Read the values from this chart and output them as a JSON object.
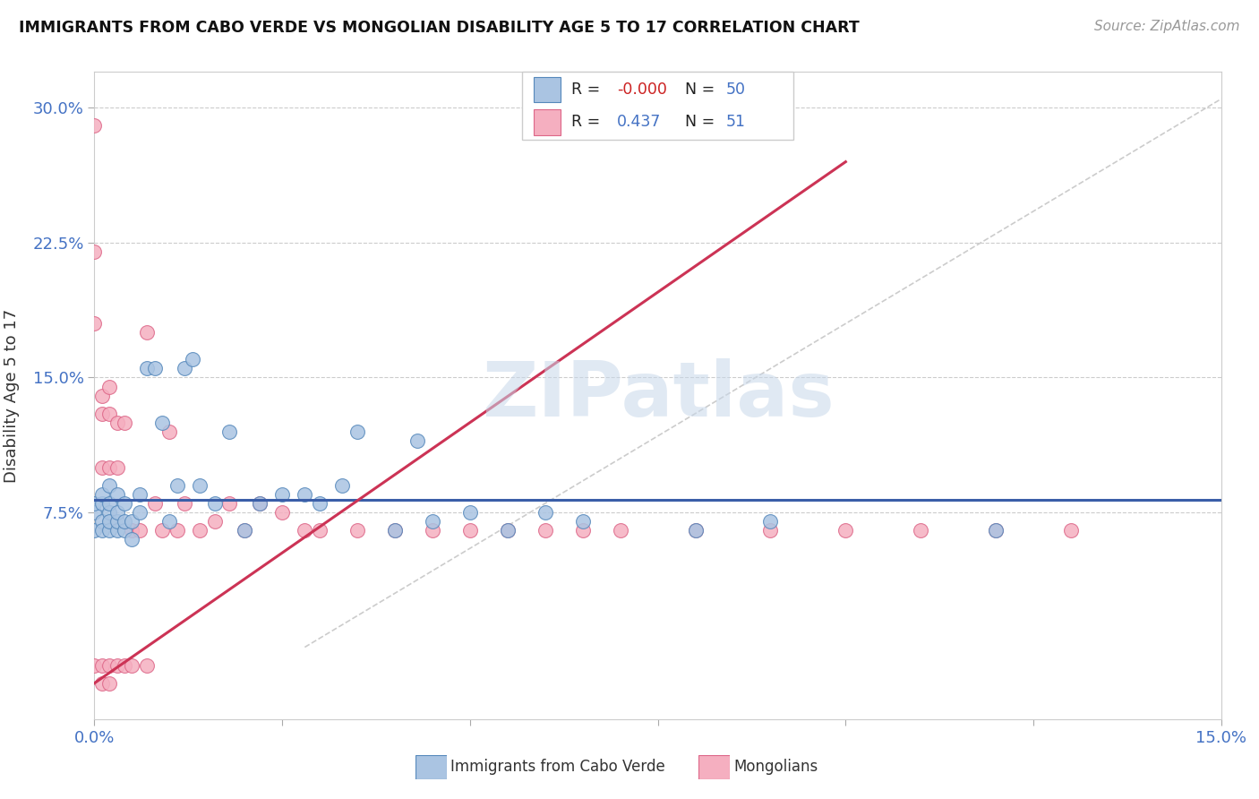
{
  "title": "IMMIGRANTS FROM CABO VERDE VS MONGOLIAN DISABILITY AGE 5 TO 17 CORRELATION CHART",
  "source_text": "Source: ZipAtlas.com",
  "ylabel": "Disability Age 5 to 17",
  "xlim": [
    0.0,
    0.15
  ],
  "ylim": [
    -0.04,
    0.32
  ],
  "xticks": [
    0.0,
    0.025,
    0.05,
    0.075,
    0.1,
    0.125,
    0.15
  ],
  "xticklabels": [
    "0.0%",
    "",
    "",
    "",
    "",
    "",
    "15.0%"
  ],
  "yticks": [
    0.075,
    0.15,
    0.225,
    0.3
  ],
  "yticklabels": [
    "7.5%",
    "15.0%",
    "22.5%",
    "30.0%"
  ],
  "legend_r_blue": "-0.000",
  "legend_n_blue": "50",
  "legend_r_pink": "0.437",
  "legend_n_pink": "51",
  "blue_color": "#aac4e2",
  "pink_color": "#f5afc0",
  "blue_edge": "#5588bb",
  "pink_edge": "#dd6688",
  "line_blue": "#3a5ea8",
  "line_pink": "#cc3355",
  "line_grey": "#cccccc",
  "watermark_color": "#c8d8ea",
  "cabo_verde_x": [
    0.0,
    0.0,
    0.0,
    0.001,
    0.001,
    0.001,
    0.001,
    0.002,
    0.002,
    0.002,
    0.002,
    0.002,
    0.003,
    0.003,
    0.003,
    0.003,
    0.004,
    0.004,
    0.004,
    0.005,
    0.005,
    0.006,
    0.006,
    0.007,
    0.008,
    0.009,
    0.01,
    0.011,
    0.012,
    0.013,
    0.014,
    0.016,
    0.018,
    0.02,
    0.022,
    0.025,
    0.028,
    0.03,
    0.033,
    0.035,
    0.04,
    0.043,
    0.045,
    0.05,
    0.055,
    0.06,
    0.065,
    0.08,
    0.09,
    0.12
  ],
  "cabo_verde_y": [
    0.075,
    0.08,
    0.065,
    0.08,
    0.085,
    0.07,
    0.065,
    0.075,
    0.08,
    0.09,
    0.065,
    0.07,
    0.065,
    0.07,
    0.075,
    0.085,
    0.065,
    0.07,
    0.08,
    0.06,
    0.07,
    0.075,
    0.085,
    0.155,
    0.155,
    0.125,
    0.07,
    0.09,
    0.155,
    0.16,
    0.09,
    0.08,
    0.12,
    0.065,
    0.08,
    0.085,
    0.085,
    0.08,
    0.09,
    0.12,
    0.065,
    0.115,
    0.07,
    0.075,
    0.065,
    0.075,
    0.07,
    0.065,
    0.07,
    0.065
  ],
  "mongolian_x": [
    0.0,
    0.0,
    0.0,
    0.0,
    0.001,
    0.001,
    0.001,
    0.001,
    0.001,
    0.002,
    0.002,
    0.002,
    0.002,
    0.002,
    0.003,
    0.003,
    0.003,
    0.004,
    0.004,
    0.005,
    0.005,
    0.006,
    0.007,
    0.007,
    0.008,
    0.009,
    0.01,
    0.011,
    0.012,
    0.014,
    0.016,
    0.018,
    0.02,
    0.022,
    0.025,
    0.028,
    0.03,
    0.035,
    0.04,
    0.045,
    0.05,
    0.055,
    0.06,
    0.065,
    0.07,
    0.08,
    0.09,
    0.1,
    0.11,
    0.12,
    0.13
  ],
  "mongolian_y": [
    0.29,
    0.22,
    0.18,
    -0.01,
    0.14,
    0.13,
    0.1,
    -0.01,
    -0.02,
    0.145,
    0.13,
    0.1,
    -0.01,
    -0.02,
    0.125,
    0.1,
    -0.01,
    0.125,
    -0.01,
    0.065,
    -0.01,
    0.065,
    0.175,
    -0.01,
    0.08,
    0.065,
    0.12,
    0.065,
    0.08,
    0.065,
    0.07,
    0.08,
    0.065,
    0.08,
    0.075,
    0.065,
    0.065,
    0.065,
    0.065,
    0.065,
    0.065,
    0.065,
    0.065,
    0.065,
    0.065,
    0.065,
    0.065,
    0.065,
    0.065,
    0.065,
    0.065
  ],
  "pink_line_x0": 0.0,
  "pink_line_y0": -0.02,
  "pink_line_x1": 0.1,
  "pink_line_y1": 0.27,
  "blue_line_y": 0.082,
  "grey_line_x0": 0.028,
  "grey_line_y0": 0.0,
  "grey_line_x1": 0.15,
  "grey_line_y1": 0.305
}
